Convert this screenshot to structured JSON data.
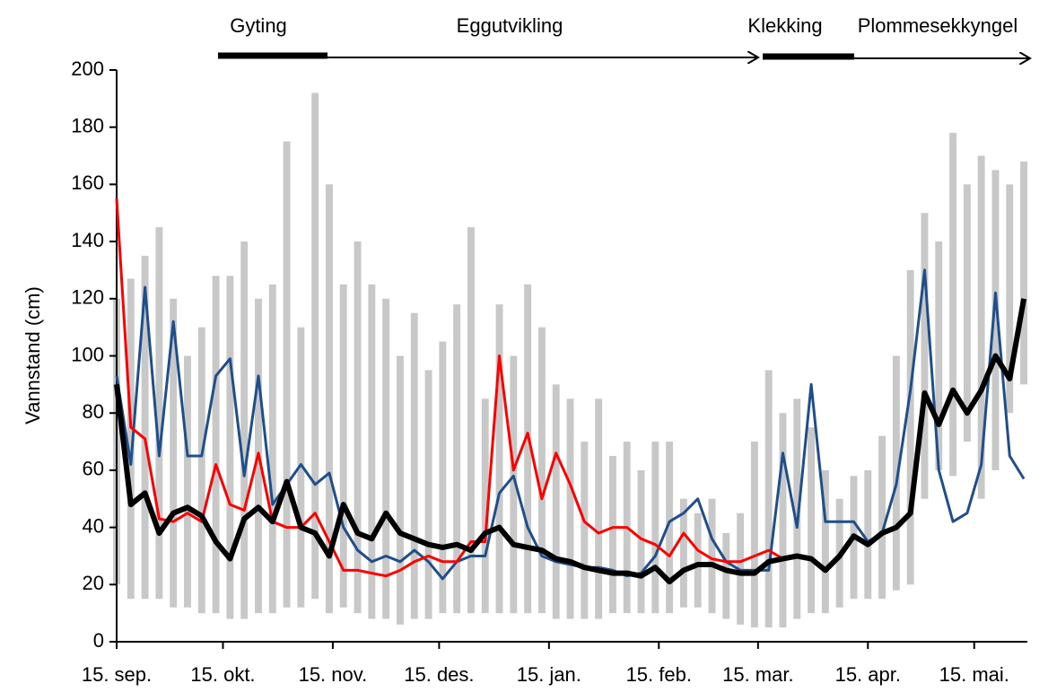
{
  "chart_data": {
    "type": "line",
    "y_label": "Vannstand (cm)",
    "annotations": [
      "Gyting",
      "Eggutvikling",
      "Klekking",
      "Plommesekkyngel"
    ],
    "xlim": [
      0,
      257
    ],
    "xticks": [
      {
        "value": 0,
        "label": "15. sep."
      },
      {
        "value": 30,
        "label": "15. okt."
      },
      {
        "value": 61,
        "label": "15. nov."
      },
      {
        "value": 91,
        "label": "15. des."
      },
      {
        "value": 122,
        "label": "15. jan."
      },
      {
        "value": 153,
        "label": "15. feb."
      },
      {
        "value": 181,
        "label": "15. mar."
      },
      {
        "value": 212,
        "label": "15. apr."
      },
      {
        "value": 242,
        "label": "15. mai."
      }
    ],
    "ylim": [
      0,
      200
    ],
    "yticks": [
      0,
      20,
      40,
      60,
      80,
      100,
      120,
      140,
      160,
      180,
      200
    ],
    "x": [
      0,
      4,
      8,
      12,
      16,
      20,
      24,
      28,
      32,
      36,
      40,
      44,
      48,
      52,
      56,
      60,
      64,
      68,
      72,
      76,
      80,
      84,
      88,
      92,
      96,
      100,
      104,
      108,
      112,
      116,
      120,
      124,
      128,
      132,
      136,
      140,
      144,
      148,
      152,
      156,
      160,
      164,
      168,
      172,
      176,
      180,
      184,
      188,
      192,
      196,
      200,
      204,
      208,
      212,
      216,
      220,
      224,
      228,
      232,
      236,
      240,
      244,
      248,
      252,
      256
    ],
    "range": {
      "color": "#c8c8c8",
      "low": [
        20,
        15,
        15,
        15,
        12,
        12,
        10,
        10,
        8,
        8,
        10,
        10,
        12,
        12,
        15,
        10,
        12,
        10,
        8,
        8,
        6,
        8,
        8,
        10,
        10,
        10,
        10,
        10,
        10,
        10,
        10,
        8,
        8,
        8,
        8,
        10,
        10,
        10,
        10,
        10,
        12,
        12,
        10,
        8,
        6,
        5,
        5,
        5,
        8,
        10,
        10,
        12,
        15,
        15,
        15,
        18,
        20,
        50,
        60,
        58,
        70,
        50,
        60,
        80,
        90
      ],
      "high": [
        120,
        127,
        135,
        145,
        120,
        100,
        110,
        128,
        128,
        140,
        120,
        125,
        175,
        110,
        192,
        160,
        125,
        140,
        125,
        120,
        100,
        115,
        95,
        105,
        118,
        145,
        85,
        118,
        100,
        125,
        110,
        90,
        85,
        70,
        85,
        65,
        70,
        60,
        70,
        70,
        50,
        45,
        50,
        38,
        45,
        70,
        95,
        80,
        85,
        75,
        60,
        50,
        58,
        60,
        72,
        100,
        130,
        150,
        140,
        178,
        160,
        170,
        165,
        160,
        168
      ]
    },
    "series": [
      {
        "color": "#1f4e8c",
        "line_width": 3,
        "values": [
          93,
          62,
          124,
          65,
          112,
          65,
          65,
          93,
          99,
          58,
          93,
          48,
          55,
          62,
          55,
          59,
          40,
          32,
          28,
          30,
          28,
          32,
          28,
          22,
          28,
          30,
          30,
          52,
          58,
          40,
          30,
          28,
          27,
          26,
          26,
          25,
          23,
          24,
          30,
          42,
          45,
          50,
          36,
          28,
          25,
          25,
          25,
          66,
          40,
          90,
          42,
          42,
          42,
          35,
          38,
          55,
          88,
          130,
          60,
          42,
          45,
          62,
          122,
          65,
          57
        ]
      },
      {
        "color": "#ff0000",
        "line_width": 3,
        "values": [
          155,
          75,
          71,
          43,
          42,
          45,
          42,
          62,
          48,
          46,
          66,
          42,
          40,
          40,
          45,
          35,
          25,
          25,
          24,
          23,
          25,
          28,
          30,
          28,
          28,
          35,
          35,
          100,
          60,
          73,
          50,
          66,
          55,
          42,
          38,
          40,
          40,
          36,
          34,
          30,
          38,
          32,
          29,
          28,
          28,
          30,
          32,
          29,
          null,
          null,
          null,
          null,
          null,
          null,
          null,
          null,
          null,
          null,
          null,
          null,
          null,
          null,
          null,
          null,
          null
        ]
      },
      {
        "color": "#000000",
        "line_width": 6,
        "values": [
          90,
          48,
          52,
          38,
          45,
          47,
          44,
          35,
          29,
          43,
          47,
          42,
          56,
          40,
          38,
          30,
          48,
          38,
          36,
          45,
          38,
          36,
          34,
          33,
          34,
          32,
          38,
          40,
          34,
          33,
          32,
          29,
          28,
          26,
          25,
          24,
          24,
          23,
          26,
          21,
          25,
          27,
          27,
          25,
          24,
          24,
          28,
          29,
          30,
          29,
          25,
          30,
          37,
          34,
          38,
          40,
          45,
          87,
          76,
          88,
          80,
          88,
          100,
          92,
          120
        ]
      }
    ]
  }
}
